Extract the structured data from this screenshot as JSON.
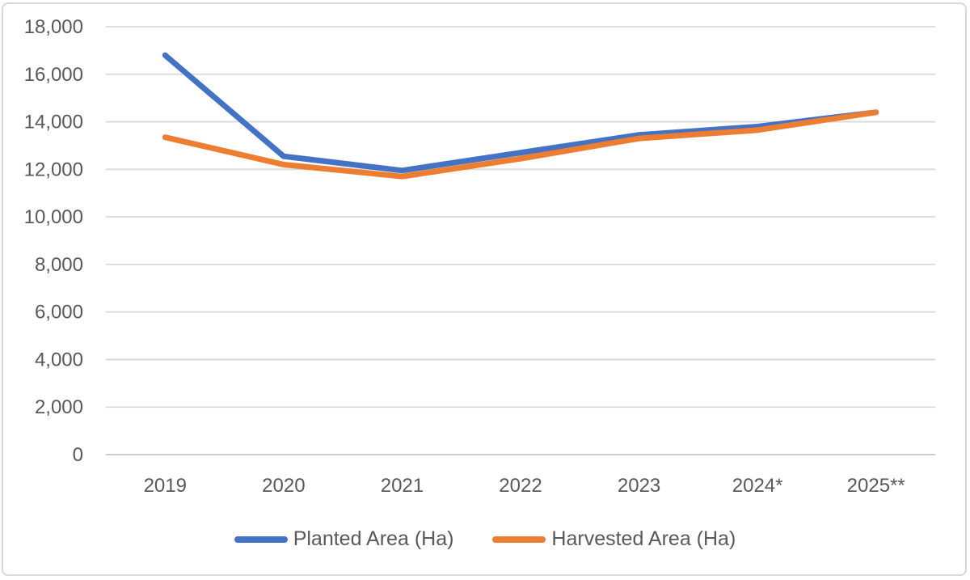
{
  "colors": {
    "planted_line": "#4472C4",
    "harvested_line": "#ED7D31",
    "gridline": "#D9D9D9",
    "axis_line": "#C6C6C6",
    "label_text": "#595959",
    "frame_border": "#D9D9D9",
    "background": "#FFFFFF"
  },
  "chart_data": {
    "type": "line",
    "title": "",
    "xlabel": "",
    "ylabel": "",
    "grid": true,
    "legend_position": "bottom",
    "categories": [
      "2019",
      "2020",
      "2021",
      "2022",
      "2023",
      "2024*",
      "2025**"
    ],
    "series": [
      {
        "name": "Planted Area (Ha)",
        "color": "#4472C4",
        "values": [
          16800,
          12550,
          11950,
          12700,
          13450,
          13800,
          14400
        ]
      },
      {
        "name": "Harvested Area (Ha)",
        "color": "#ED7D31",
        "values": [
          13350,
          12200,
          11700,
          12450,
          13300,
          13650,
          14400
        ]
      }
    ],
    "ylim": [
      0,
      18000
    ],
    "ytick_step": 2000,
    "ytick_labels": [
      "0",
      "2,000",
      "4,000",
      "6,000",
      "8,000",
      "10,000",
      "12,000",
      "14,000",
      "16,000",
      "18,000"
    ]
  }
}
